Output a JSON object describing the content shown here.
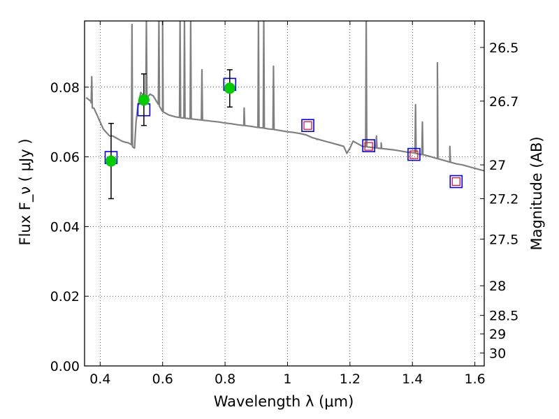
{
  "chart_data": {
    "type": "scatter",
    "xlabel": "Wavelength  λ (μm)",
    "ylabel": "Flux  F_ν  ( μJy )",
    "y2label": "Magnitude (AB)",
    "xlim": [
      0.35,
      1.63
    ],
    "ylim": [
      0.0,
      0.099
    ],
    "grid": true,
    "x_ticks": [
      0.4,
      0.6,
      0.8,
      1.0,
      1.2,
      1.4,
      1.6
    ],
    "x_tick_labels": [
      "0.4",
      "0.6",
      "0.8",
      "1",
      "1.2",
      "1.4",
      "1.6"
    ],
    "y_ticks": [
      0.0,
      0.02,
      0.04,
      0.06,
      0.08
    ],
    "y_tick_labels": [
      "0.00",
      "0.02",
      "0.04",
      "0.06",
      "0.08"
    ],
    "y2_ticks": [
      {
        "label": "26.5",
        "flux": 0.0914
      },
      {
        "label": "26.7",
        "flux": 0.076
      },
      {
        "label": "27",
        "flux": 0.0577
      },
      {
        "label": "27.2",
        "flux": 0.048
      },
      {
        "label": "27.5",
        "flux": 0.0364
      },
      {
        "label": "28",
        "flux": 0.023
      },
      {
        "label": "28.5",
        "flux": 0.0145
      },
      {
        "label": "29",
        "flux": 0.0092
      },
      {
        "label": "30",
        "flux": 0.0037
      }
    ],
    "series": [
      {
        "kind": "template-spectrum",
        "color": "#808080",
        "x": [
          0.355,
          0.37,
          0.375,
          0.38,
          0.385,
          0.39,
          0.4,
          0.41,
          0.42,
          0.43,
          0.44,
          0.45,
          0.46,
          0.47,
          0.48,
          0.49,
          0.5,
          0.505,
          0.51,
          0.515,
          0.52,
          0.53,
          0.54,
          0.55,
          0.56,
          0.57,
          0.58,
          0.59,
          0.6,
          0.62,
          0.64,
          0.66,
          0.68,
          0.7,
          0.72,
          0.74,
          0.76,
          0.78,
          0.8,
          0.82,
          0.84,
          0.86,
          0.88,
          0.9,
          0.92,
          0.94,
          0.96,
          0.98,
          1.0,
          1.02,
          1.04,
          1.06,
          1.08,
          1.1,
          1.12,
          1.14,
          1.16,
          1.18,
          1.19,
          1.2,
          1.21,
          1.22,
          1.24,
          1.26,
          1.28,
          1.3,
          1.32,
          1.34,
          1.36,
          1.38,
          1.4,
          1.42,
          1.44,
          1.46,
          1.48,
          1.5,
          1.52,
          1.54,
          1.56,
          1.58,
          1.6,
          1.63
        ],
        "y": [
          0.077,
          0.076,
          0.074,
          0.074,
          0.073,
          0.072,
          0.07,
          0.068,
          0.067,
          0.066,
          0.066,
          0.0655,
          0.065,
          0.0645,
          0.0642,
          0.064,
          0.0635,
          0.0628,
          0.0625,
          0.07,
          0.074,
          0.0785,
          0.0775,
          0.077,
          0.078,
          0.0775,
          0.076,
          0.0745,
          0.073,
          0.072,
          0.0715,
          0.0712,
          0.071,
          0.0708,
          0.0706,
          0.0704,
          0.0702,
          0.07,
          0.0697,
          0.0695,
          0.0692,
          0.069,
          0.0688,
          0.0685,
          0.0683,
          0.068,
          0.0678,
          0.0675,
          0.0672,
          0.067,
          0.0667,
          0.0663,
          0.0655,
          0.065,
          0.0645,
          0.064,
          0.0635,
          0.063,
          0.061,
          0.0625,
          0.0645,
          0.064,
          0.063,
          0.0628,
          0.0626,
          0.0624,
          0.0622,
          0.062,
          0.0617,
          0.0614,
          0.0612,
          0.0608,
          0.0605,
          0.06,
          0.0595,
          0.059,
          0.0585,
          0.058,
          0.0577,
          0.0572,
          0.0567,
          0.056
        ],
        "emission_lines": [
          {
            "x": 0.373,
            "peak": 0.083
          },
          {
            "x": 0.502,
            "peak": 0.098
          },
          {
            "x": 0.548,
            "peak": 0.099
          },
          {
            "x": 0.588,
            "peak": 0.099
          },
          {
            "x": 0.6,
            "peak": 0.099
          },
          {
            "x": 0.656,
            "peak": 0.099
          },
          {
            "x": 0.67,
            "peak": 0.099
          },
          {
            "x": 0.69,
            "peak": 0.099
          },
          {
            "x": 0.726,
            "peak": 0.085
          },
          {
            "x": 0.861,
            "peak": 0.074
          },
          {
            "x": 0.907,
            "peak": 0.099
          },
          {
            "x": 0.924,
            "peak": 0.099
          },
          {
            "x": 0.955,
            "peak": 0.086
          },
          {
            "x": 1.094,
            "peak": 0.065
          },
          {
            "x": 1.252,
            "peak": 0.099
          },
          {
            "x": 1.285,
            "peak": 0.066
          },
          {
            "x": 1.3,
            "peak": 0.064
          },
          {
            "x": 1.41,
            "peak": 0.075
          },
          {
            "x": 1.432,
            "peak": 0.07
          },
          {
            "x": 1.48,
            "peak": 0.087
          },
          {
            "x": 1.52,
            "peak": 0.063
          }
        ]
      },
      {
        "kind": "model-boxes",
        "marker": "square-open",
        "color": "#0000ff",
        "x": [
          0.435,
          0.54,
          0.815,
          1.065,
          1.26,
          1.405,
          1.54
        ],
        "y": [
          0.0598,
          0.0735,
          0.0808,
          0.069,
          0.0632,
          0.0607,
          0.0529
        ]
      },
      {
        "kind": "model-boxes-inner",
        "marker": "square-open",
        "color": "#e0162b",
        "x": [
          1.065,
          1.26,
          1.405,
          1.54
        ],
        "y": [
          0.069,
          0.063,
          0.0606,
          0.0529
        ]
      },
      {
        "kind": "observed",
        "marker": "circle",
        "color": "#00cc00",
        "x": [
          0.435,
          0.54,
          0.815
        ],
        "y": [
          0.0588,
          0.0763,
          0.0797
        ],
        "yerr_low": [
          0.048,
          0.069,
          0.0743
        ],
        "yerr_high": [
          0.0696,
          0.0838,
          0.085
        ]
      }
    ]
  }
}
